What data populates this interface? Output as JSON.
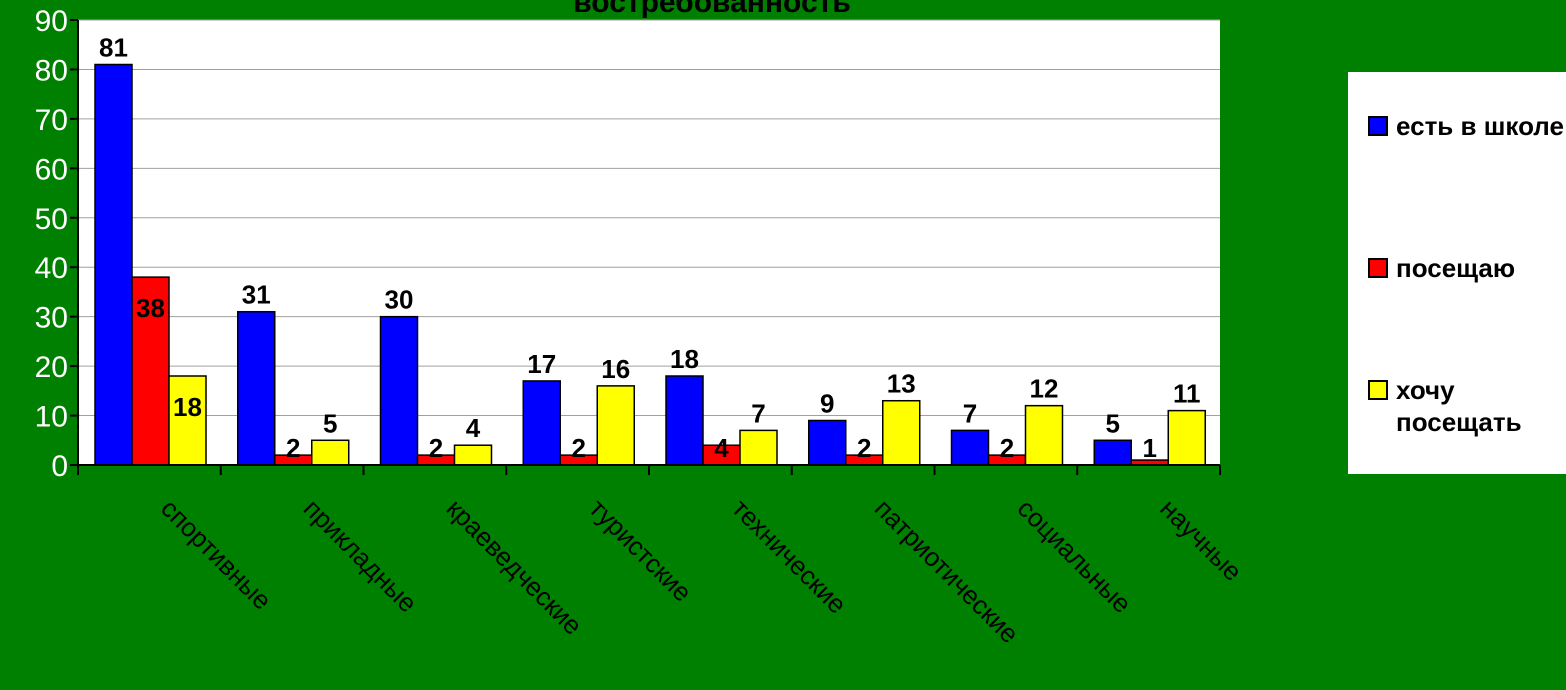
{
  "chart_data": {
    "type": "bar",
    "title": "востребованность",
    "categories": [
      "спортивные",
      "прикладные",
      "краеведческие",
      "туристские",
      "технические",
      "патриотические",
      "социальные",
      "научные"
    ],
    "series": [
      {
        "name": "есть в школе",
        "color": "#0000ff",
        "values": [
          81,
          31,
          30,
          17,
          18,
          9,
          7,
          5
        ]
      },
      {
        "name": "посещаю",
        "color": "#ff0000",
        "values": [
          38,
          2,
          2,
          2,
          4,
          2,
          2,
          1
        ]
      },
      {
        "name": "хочу посещать",
        "color": "#ffff00",
        "values": [
          18,
          5,
          4,
          16,
          7,
          13,
          12,
          11
        ]
      }
    ],
    "yticks": [
      "0",
      "10",
      "20",
      "30",
      "40",
      "50",
      "60",
      "70",
      "80",
      "90"
    ],
    "ylim": [
      0,
      90
    ],
    "grid": true,
    "legend_position": "right"
  }
}
